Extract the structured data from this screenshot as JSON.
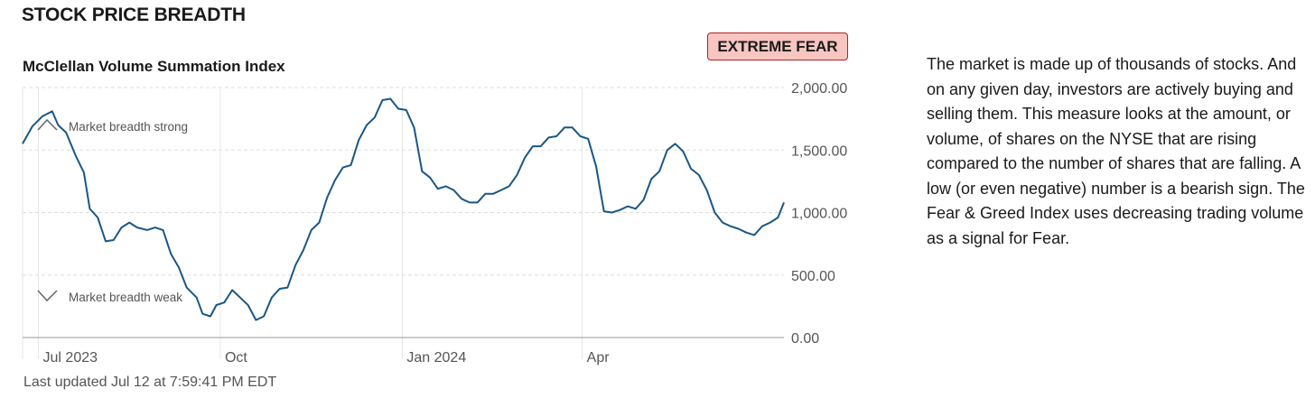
{
  "section_title": "STOCK PRICE BREADTH",
  "badge": {
    "label": "EXTREME FEAR",
    "border_color": "#b22222",
    "fill_color": "#f8c5c0"
  },
  "annotations": {
    "strong": {
      "label": "Market breadth strong",
      "icon": "chevron-up-icon"
    },
    "weak": {
      "label": "Market breadth weak",
      "icon": "chevron-down-icon"
    }
  },
  "last_updated": "Last updated Jul 12 at 7:59:41 PM EDT",
  "description": "The market is made up of thousands of stocks. And on any given day, investors are actively buying and selling them. This measure looks at the amount, or volume, of shares on the NYSE that are rising compared to the number of shares that are falling. A low (or even negative) number is a bearish sign. The Fear & Greed Index uses decreasing trading volume as a signal for Fear.",
  "colors": {
    "line": "#1a5785",
    "grid": "#dddddd",
    "axis": "#999999"
  },
  "chart_data": {
    "type": "line",
    "title": "McClellan Volume Summation Index",
    "xlabel": "",
    "ylabel": "",
    "ylim": [
      0,
      2000
    ],
    "y_ticks": [
      {
        "value": 0,
        "label": "0.00"
      },
      {
        "value": 500,
        "label": "500.00"
      },
      {
        "value": 1000,
        "label": "1,000.00"
      },
      {
        "value": 1500,
        "label": "1,500.00"
      },
      {
        "value": 2000,
        "label": "2,000.00"
      }
    ],
    "x_range": [
      "2023-06-23",
      "2024-07-12"
    ],
    "x_ticks": [
      {
        "date": "2023-07-01",
        "label": "Jul 2023"
      },
      {
        "date": "2023-10-01",
        "label": "Oct"
      },
      {
        "date": "2024-01-01",
        "label": "Jan 2024"
      },
      {
        "date": "2024-04-01",
        "label": "Apr"
      }
    ],
    "grid": "horizontal dashed",
    "series": [
      {
        "points": [
          [
            "2023-06-23",
            1550
          ],
          [
            "2023-06-28",
            1690
          ],
          [
            "2023-07-03",
            1770
          ],
          [
            "2023-07-08",
            1810
          ],
          [
            "2023-07-11",
            1700
          ],
          [
            "2023-07-15",
            1640
          ],
          [
            "2023-07-20",
            1450
          ],
          [
            "2023-07-24",
            1320
          ],
          [
            "2023-07-27",
            1030
          ],
          [
            "2023-07-31",
            960
          ],
          [
            "2023-08-04",
            770
          ],
          [
            "2023-08-08",
            780
          ],
          [
            "2023-08-12",
            880
          ],
          [
            "2023-08-16",
            920
          ],
          [
            "2023-08-20",
            880
          ],
          [
            "2023-08-25",
            860
          ],
          [
            "2023-08-29",
            880
          ],
          [
            "2023-09-02",
            860
          ],
          [
            "2023-09-06",
            670
          ],
          [
            "2023-09-10",
            560
          ],
          [
            "2023-09-14",
            400
          ],
          [
            "2023-09-19",
            320
          ],
          [
            "2023-09-22",
            190
          ],
          [
            "2023-09-26",
            170
          ],
          [
            "2023-09-29",
            260
          ],
          [
            "2023-10-03",
            280
          ],
          [
            "2023-10-07",
            380
          ],
          [
            "2023-10-11",
            320
          ],
          [
            "2023-10-15",
            260
          ],
          [
            "2023-10-19",
            140
          ],
          [
            "2023-10-23",
            170
          ],
          [
            "2023-10-27",
            320
          ],
          [
            "2023-10-31",
            390
          ],
          [
            "2023-11-04",
            400
          ],
          [
            "2023-11-08",
            580
          ],
          [
            "2023-11-12",
            700
          ],
          [
            "2023-11-16",
            860
          ],
          [
            "2023-11-20",
            920
          ],
          [
            "2023-11-24",
            1120
          ],
          [
            "2023-11-28",
            1260
          ],
          [
            "2023-12-02",
            1360
          ],
          [
            "2023-12-06",
            1380
          ],
          [
            "2023-12-10",
            1580
          ],
          [
            "2023-12-14",
            1700
          ],
          [
            "2023-12-18",
            1760
          ],
          [
            "2023-12-22",
            1900
          ],
          [
            "2023-12-26",
            1910
          ],
          [
            "2023-12-30",
            1830
          ],
          [
            "2024-01-03",
            1820
          ],
          [
            "2024-01-07",
            1680
          ],
          [
            "2024-01-11",
            1330
          ],
          [
            "2024-01-15",
            1280
          ],
          [
            "2024-01-19",
            1190
          ],
          [
            "2024-01-23",
            1210
          ],
          [
            "2024-01-27",
            1180
          ],
          [
            "2024-01-31",
            1110
          ],
          [
            "2024-02-04",
            1080
          ],
          [
            "2024-02-08",
            1080
          ],
          [
            "2024-02-12",
            1150
          ],
          [
            "2024-02-16",
            1150
          ],
          [
            "2024-02-20",
            1180
          ],
          [
            "2024-02-24",
            1210
          ],
          [
            "2024-02-28",
            1300
          ],
          [
            "2024-03-03",
            1440
          ],
          [
            "2024-03-07",
            1530
          ],
          [
            "2024-03-11",
            1530
          ],
          [
            "2024-03-15",
            1600
          ],
          [
            "2024-03-19",
            1610
          ],
          [
            "2024-03-23",
            1680
          ],
          [
            "2024-03-27",
            1680
          ],
          [
            "2024-03-31",
            1610
          ],
          [
            "2024-04-04",
            1590
          ],
          [
            "2024-04-08",
            1370
          ],
          [
            "2024-04-12",
            1010
          ],
          [
            "2024-04-16",
            1000
          ],
          [
            "2024-04-20",
            1020
          ],
          [
            "2024-04-24",
            1050
          ],
          [
            "2024-04-28",
            1030
          ],
          [
            "2024-05-02",
            1100
          ],
          [
            "2024-05-06",
            1270
          ],
          [
            "2024-05-10",
            1330
          ],
          [
            "2024-05-14",
            1500
          ],
          [
            "2024-05-18",
            1550
          ],
          [
            "2024-05-22",
            1490
          ],
          [
            "2024-05-26",
            1350
          ],
          [
            "2024-05-30",
            1300
          ],
          [
            "2024-06-03",
            1180
          ],
          [
            "2024-06-07",
            1000
          ],
          [
            "2024-06-11",
            920
          ],
          [
            "2024-06-15",
            890
          ],
          [
            "2024-06-19",
            870
          ],
          [
            "2024-06-23",
            840
          ],
          [
            "2024-06-27",
            820
          ],
          [
            "2024-07-01",
            890
          ],
          [
            "2024-07-05",
            920
          ],
          [
            "2024-07-09",
            960
          ],
          [
            "2024-07-12",
            1080
          ]
        ]
      }
    ]
  }
}
